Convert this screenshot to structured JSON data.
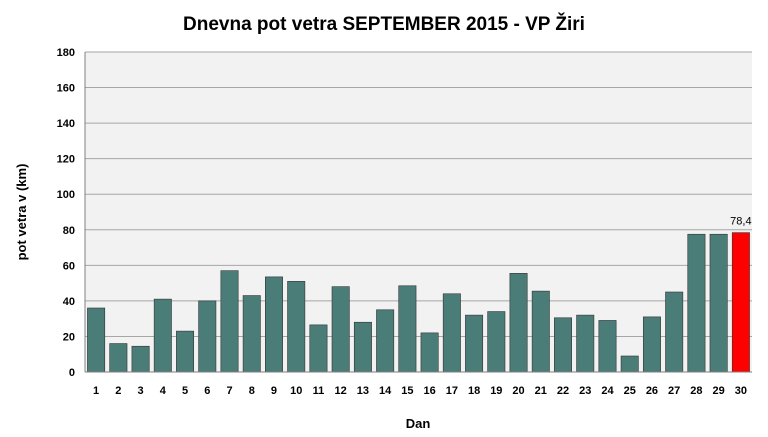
{
  "chart_data": {
    "type": "bar",
    "title": "Dnevna pot vetra SEPTEMBER 2015 - VP Žiri",
    "xlabel": "Dan",
    "ylabel": "pot vetra  v (km)",
    "ylim": [
      0,
      180
    ],
    "yticks": [
      0,
      20,
      40,
      60,
      80,
      100,
      120,
      140,
      160,
      180
    ],
    "grid": true,
    "categories": [
      "1",
      "2",
      "3",
      "4",
      "5",
      "6",
      "7",
      "8",
      "9",
      "10",
      "11",
      "12",
      "13",
      "14",
      "15",
      "16",
      "17",
      "18",
      "19",
      "20",
      "21",
      "22",
      "23",
      "24",
      "25",
      "26",
      "27",
      "28",
      "29",
      "30"
    ],
    "values": [
      36,
      16,
      14.5,
      41,
      23,
      40,
      57,
      43,
      53.5,
      51,
      26.5,
      48,
      28,
      35,
      48.5,
      22,
      44,
      32,
      34,
      55.5,
      45.5,
      30.5,
      32,
      29,
      9,
      31,
      45,
      77.5,
      77.5,
      78.4
    ],
    "highlight_index": 29,
    "data_labels": [
      {
        "index": 29,
        "text": "78,4"
      }
    ],
    "colors": {
      "bar": "#4a7c78",
      "highlight": "#ff0000",
      "plot_bg": "#f2f2f2",
      "grid": "#a6a6a6"
    }
  }
}
